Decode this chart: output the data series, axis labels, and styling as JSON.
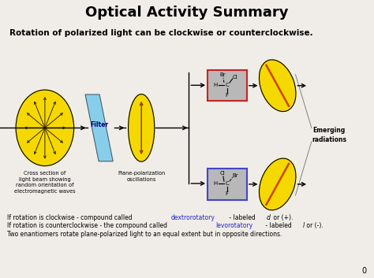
{
  "title": "Optical Activity Summary",
  "subtitle": "Rotation of polarized light can be clockwise or counterclockwise.",
  "title_fontsize": 13,
  "subtitle_fontsize": 7.5,
  "bg_color": "#f0ede8",
  "text_color": "#000000",
  "yellow": "#F5D800",
  "blue_filter": "#87CEEB",
  "cross_label": "Cross section of\nlight beam showing\nrandom orientation of\nelectromagnetic waves",
  "plane_label": "Plane-polarization\noscillations",
  "filter_label": "Filter",
  "emerging": "Emerging\nradiations",
  "page_num": "0"
}
